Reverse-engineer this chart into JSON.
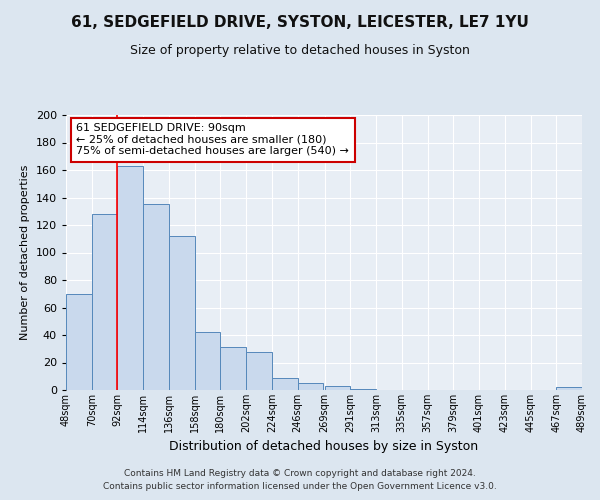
{
  "title1": "61, SEDGEFIELD DRIVE, SYSTON, LEICESTER, LE7 1YU",
  "title2": "Size of property relative to detached houses in Syston",
  "xlabel": "Distribution of detached houses by size in Syston",
  "ylabel": "Number of detached properties",
  "bar_left_edges": [
    48,
    70,
    92,
    114,
    136,
    158,
    180,
    202,
    224,
    246,
    269,
    291,
    313,
    335,
    357,
    379,
    401,
    423,
    445,
    467
  ],
  "bar_heights": [
    70,
    128,
    163,
    135,
    112,
    42,
    31,
    28,
    9,
    5,
    3,
    1,
    0,
    0,
    0,
    0,
    0,
    0,
    0,
    2
  ],
  "bar_widths": [
    22,
    22,
    22,
    22,
    22,
    22,
    22,
    22,
    22,
    22,
    22,
    22,
    22,
    22,
    22,
    22,
    22,
    22,
    22,
    22
  ],
  "tick_labels": [
    "48sqm",
    "70sqm",
    "92sqm",
    "114sqm",
    "136sqm",
    "158sqm",
    "180sqm",
    "202sqm",
    "224sqm",
    "246sqm",
    "269sqm",
    "291sqm",
    "313sqm",
    "335sqm",
    "357sqm",
    "379sqm",
    "401sqm",
    "423sqm",
    "445sqm",
    "467sqm",
    "489sqm"
  ],
  "ylim": [
    0,
    200
  ],
  "yticks": [
    0,
    20,
    40,
    60,
    80,
    100,
    120,
    140,
    160,
    180,
    200
  ],
  "bar_color": "#c9d9ed",
  "bar_edge_color": "#5588bb",
  "red_line_x": 92,
  "annotation_title": "61 SEDGEFIELD DRIVE: 90sqm",
  "annotation_line1": "← 25% of detached houses are smaller (180)",
  "annotation_line2": "75% of semi-detached houses are larger (540) →",
  "annotation_box_color": "#ffffff",
  "annotation_box_edge": "#cc0000",
  "footer1": "Contains HM Land Registry data © Crown copyright and database right 2024.",
  "footer2": "Contains public sector information licensed under the Open Government Licence v3.0.",
  "bg_color": "#dce6f0",
  "plot_bg_color": "#e8eef5",
  "grid_color": "#ffffff",
  "title1_fontsize": 11,
  "title2_fontsize": 9,
  "xlabel_fontsize": 9,
  "ylabel_fontsize": 8,
  "ann_fontsize": 8,
  "tick_fontsize": 7
}
